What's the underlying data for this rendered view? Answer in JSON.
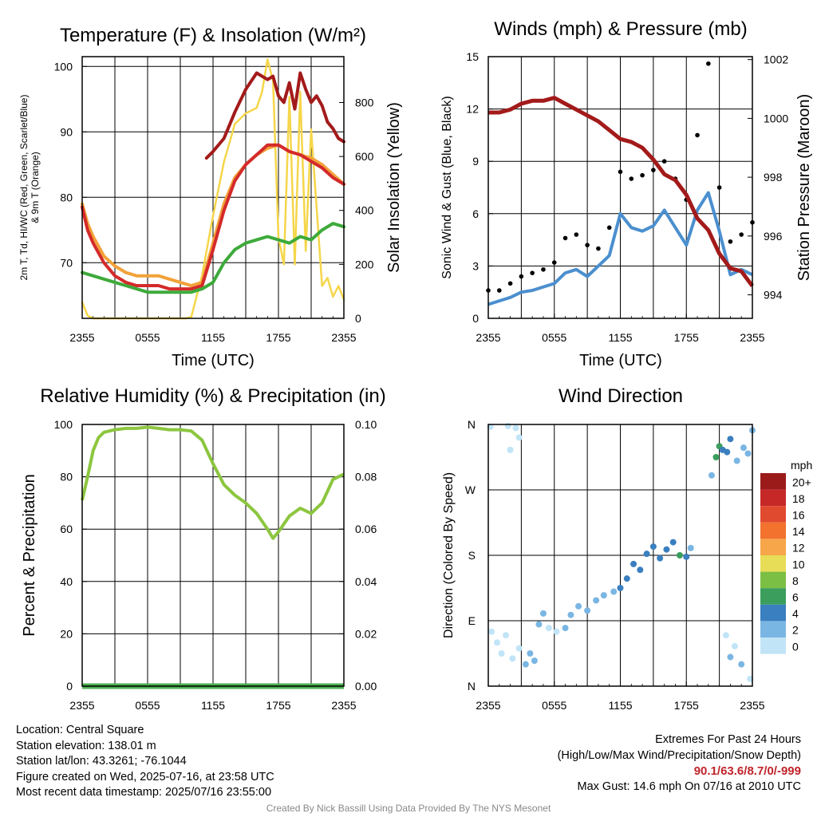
{
  "chart_data": [
    {
      "type": "line",
      "title": "Temperature (F) & Insolation (W/m²)",
      "xlabel": "Time (UTC)",
      "ylabel": [
        "2m T, Td, HI/WC (Red, Green, Scarlet/Blue)",
        "& 9m T (Orange)"
      ],
      "y2label": "Solar Insolation (Yellow)",
      "x_ticks": [
        "2355",
        "0555",
        "1155",
        "1755",
        "2355"
      ],
      "ylim": [
        61.5,
        101.5
      ],
      "y_ticks": [
        70,
        80,
        90,
        100
      ],
      "y2lim": [
        0,
        970
      ],
      "y2_ticks": [
        0,
        200,
        400,
        600,
        800
      ],
      "grid": true,
      "x_hours": [
        0,
        1,
        2,
        3,
        4,
        5,
        6,
        7,
        8,
        9,
        10,
        11,
        12,
        13,
        14,
        15,
        16,
        17,
        18,
        19,
        20,
        21,
        22,
        23,
        24
      ],
      "series": [
        {
          "color": "#a31a1a",
          "axis": "y2",
          "x": [
            11.4,
            12,
            13,
            14,
            15,
            16,
            17,
            17.5,
            18,
            18.5,
            19,
            19.5,
            20,
            20.5,
            21,
            21.5,
            22,
            22.5,
            23,
            23.5,
            24
          ],
          "values": [
            86,
            87,
            89,
            93,
            96.5,
            99,
            98,
            98.5,
            95.5,
            94.5,
            97.5,
            93.5,
            99,
            96.5,
            94.5,
            95.5,
            94,
            91.5,
            90.5,
            89,
            88.5
          ]
        },
        {
          "color": "#f2a23a",
          "x": [
            0,
            0.5,
            1,
            2,
            3,
            4,
            5,
            6,
            7,
            8,
            9,
            10,
            11,
            12,
            13,
            14,
            15,
            16,
            17,
            18,
            19,
            20,
            21,
            22,
            23,
            24
          ],
          "values": [
            79,
            76,
            74,
            71,
            69.5,
            68.5,
            68,
            68,
            68,
            67.5,
            67,
            66.5,
            67,
            73,
            79,
            83,
            85,
            86.5,
            87.5,
            88,
            87,
            86.5,
            86,
            85,
            83.5,
            82
          ]
        },
        {
          "color": "#d42a2a",
          "x": [
            0,
            0.5,
            1,
            2,
            3,
            4,
            5,
            6,
            7,
            8,
            9,
            10,
            11,
            12,
            13,
            14,
            15,
            16,
            17,
            18,
            19,
            20,
            21,
            22,
            23,
            24
          ],
          "values": [
            78.5,
            75,
            73,
            70,
            68,
            67,
            66.5,
            66.5,
            66.5,
            66,
            66,
            66,
            66.5,
            72,
            78,
            82.5,
            85,
            86.5,
            88,
            88,
            87,
            86.5,
            85.5,
            84.5,
            83,
            82
          ]
        },
        {
          "color": "#3daa3a",
          "x": [
            0,
            1,
            2,
            3,
            4,
            5,
            6,
            7,
            8,
            9,
            10,
            11,
            12,
            13,
            14,
            15,
            16,
            17,
            18,
            19,
            20,
            21,
            22,
            23,
            24
          ],
          "values": [
            68.5,
            68,
            67.5,
            67,
            66.5,
            66,
            65.5,
            65.5,
            65.5,
            65.5,
            65.5,
            66,
            67,
            70,
            72,
            73,
            73.5,
            74,
            73.5,
            73,
            74,
            73.5,
            75,
            76,
            75.5
          ]
        },
        {
          "color": "#f5d64a",
          "axis": "y2",
          "x": [
            0,
            0.5,
            1,
            2,
            4,
            6,
            8,
            9.5,
            10,
            11,
            12,
            13,
            14,
            15,
            16,
            16.5,
            17,
            17.5,
            18,
            18.5,
            19,
            19.5,
            20,
            20.5,
            21,
            22,
            22.5,
            23,
            23.5,
            24
          ],
          "values": [
            60,
            10,
            0,
            0,
            0,
            0,
            0,
            0,
            5,
            160,
            380,
            580,
            720,
            760,
            780,
            840,
            960,
            880,
            300,
            200,
            820,
            200,
            840,
            250,
            700,
            120,
            150,
            80,
            120,
            70
          ]
        }
      ]
    },
    {
      "type": "line",
      "title": "Winds (mph) & Pressure (mb)",
      "xlabel": "Time (UTC)",
      "ylabel": "Sonic Wind & Gust (Blue, Black)",
      "y2label": "Station Pressure (Maroon)",
      "x_ticks": [
        "2355",
        "0555",
        "1155",
        "1755",
        "2355"
      ],
      "ylim": [
        0,
        15
      ],
      "y_ticks": [
        0,
        3,
        6,
        9,
        12,
        15
      ],
      "y2lim": [
        993.2,
        1002.1
      ],
      "y2_ticks": [
        994,
        996,
        998,
        1000,
        1002
      ],
      "grid": true,
      "series": [
        {
          "name": "Sonic Wind",
          "color": "#4b8fcf",
          "x": [
            0,
            1,
            2,
            3,
            4,
            5,
            6,
            7,
            8,
            9,
            10,
            11,
            12,
            13,
            14,
            15,
            16,
            17,
            18,
            19,
            20,
            21,
            22,
            23,
            24
          ],
          "values": [
            0.8,
            1.0,
            1.2,
            1.5,
            1.6,
            1.8,
            2.0,
            2.6,
            2.8,
            2.4,
            3.0,
            3.6,
            6.0,
            5.2,
            5.0,
            5.3,
            6.2,
            5.2,
            4.2,
            6.2,
            7.2,
            5.0,
            2.5,
            2.8,
            2.5
          ]
        },
        {
          "name": "Gust",
          "color": "#000000",
          "x": [
            0,
            1,
            2,
            3,
            4,
            5,
            6,
            7,
            8,
            9,
            10,
            11,
            12,
            13,
            14,
            15,
            16,
            17,
            18,
            19,
            20,
            21,
            22,
            23,
            24
          ],
          "values": [
            1.6,
            1.6,
            2.0,
            2.4,
            2.6,
            2.8,
            3.2,
            4.6,
            4.8,
            4.2,
            4.0,
            5.2,
            8.4,
            8.0,
            8.2,
            8.5,
            9.0,
            8.0,
            6.8,
            10.5,
            14.6,
            7.5,
            4.4,
            4.8,
            5.5
          ]
        },
        {
          "name": "Station Pressure",
          "color": "#a31a1a",
          "axis": "y2",
          "x": [
            0,
            1,
            2,
            3,
            4,
            5,
            6,
            7,
            8,
            9,
            10,
            11,
            12,
            13,
            14,
            15,
            16,
            17,
            18,
            19,
            20,
            21,
            22,
            23,
            24
          ],
          "values": [
            1000.2,
            1000.2,
            1000.3,
            1000.5,
            1000.6,
            1000.6,
            1000.7,
            1000.5,
            1000.3,
            1000.1,
            999.9,
            999.6,
            999.3,
            999.2,
            999.0,
            998.6,
            998.1,
            997.9,
            997.4,
            996.6,
            996.2,
            995.4,
            994.9,
            994.8,
            994.3
          ]
        }
      ]
    },
    {
      "type": "line",
      "title": "Relative Humidity (%) & Precipitation (in)",
      "xlabel": "",
      "ylabel": "Percent & Precipitation",
      "x_ticks": [
        "2355",
        "0555",
        "1155",
        "1755",
        "2355"
      ],
      "ylim": [
        0,
        100
      ],
      "y_ticks": [
        0,
        20,
        40,
        60,
        80,
        100
      ],
      "y2lim": [
        0,
        0.1
      ],
      "y2_ticks": [
        "0.00",
        "0.02",
        "0.04",
        "0.06",
        "0.08",
        "0.10"
      ],
      "grid": true,
      "series": [
        {
          "color": "#8cc63f",
          "x": [
            0,
            0.5,
            1,
            1.5,
            2,
            3,
            4,
            5,
            6,
            7,
            8,
            9,
            10,
            11,
            12,
            13,
            14,
            15,
            16,
            17,
            17.5,
            18,
            19,
            20,
            21,
            22,
            23,
            24
          ],
          "values": [
            71,
            80,
            90,
            95,
            97,
            98,
            98.5,
            98.5,
            99,
            98.5,
            98,
            98,
            97.5,
            94,
            85,
            77,
            73,
            70,
            66,
            60,
            56.5,
            59,
            65,
            68,
            66,
            70,
            79,
            81
          ]
        },
        {
          "color": "#4caf50",
          "x": [
            0,
            24
          ],
          "values": [
            0,
            0
          ]
        }
      ]
    },
    {
      "type": "scatter",
      "title": "Wind Direction",
      "ylabel": "Direction (Colored By Speed)",
      "x_ticks": [
        "2355",
        "0555",
        "1155",
        "1755",
        "2355"
      ],
      "y_ticks": [
        "N",
        "E",
        "S",
        "W",
        "N"
      ],
      "ylim": [
        0,
        360
      ],
      "grid": true,
      "legend": {
        "title": "mph",
        "labels": [
          "20+",
          "18",
          "16",
          "14",
          "12",
          "10",
          "8",
          "6",
          "4",
          "2",
          "0"
        ],
        "colors": [
          "#9b1b1b",
          "#c62828",
          "#e04a2f",
          "#f2722e",
          "#f7a64a",
          "#e8dd57",
          "#7bbf44",
          "#3b9e5c",
          "#3a7fbf",
          "#7ab6e3",
          "#c1e4f7"
        ],
        "placement": "right"
      },
      "points": [
        {
          "x": 0.2,
          "y": 357,
          "speed": 1
        },
        {
          "x": 1.8,
          "y": 358,
          "speed": 0.5
        },
        {
          "x": 2.5,
          "y": 355,
          "speed": 1
        },
        {
          "x": 2.8,
          "y": 342,
          "speed": 1
        },
        {
          "x": 2.0,
          "y": 325,
          "speed": 1
        },
        {
          "x": 0.3,
          "y": 75,
          "speed": 1
        },
        {
          "x": 0.8,
          "y": 60,
          "speed": 0.5
        },
        {
          "x": 1.2,
          "y": 45,
          "speed": 1
        },
        {
          "x": 1.6,
          "y": 70,
          "speed": 1
        },
        {
          "x": 2.2,
          "y": 38,
          "speed": 1.5
        },
        {
          "x": 2.8,
          "y": 52,
          "speed": 1
        },
        {
          "x": 3.4,
          "y": 30,
          "speed": 2
        },
        {
          "x": 3.8,
          "y": 45,
          "speed": 2
        },
        {
          "x": 4.2,
          "y": 35,
          "speed": 2
        },
        {
          "x": 4.6,
          "y": 85,
          "speed": 2.5
        },
        {
          "x": 5.0,
          "y": 100,
          "speed": 2
        },
        {
          "x": 5.5,
          "y": 80,
          "speed": 1.5
        },
        {
          "x": 6.2,
          "y": 75,
          "speed": 1.8
        },
        {
          "x": 7.0,
          "y": 80,
          "speed": 2
        },
        {
          "x": 7.5,
          "y": 98,
          "speed": 2.5
        },
        {
          "x": 8.2,
          "y": 110,
          "speed": 2
        },
        {
          "x": 9.0,
          "y": 104,
          "speed": 2
        },
        {
          "x": 9.8,
          "y": 118,
          "speed": 3
        },
        {
          "x": 10.5,
          "y": 125,
          "speed": 3
        },
        {
          "x": 11.4,
          "y": 130,
          "speed": 3
        },
        {
          "x": 12.0,
          "y": 135,
          "speed": 5
        },
        {
          "x": 12.6,
          "y": 148,
          "speed": 4
        },
        {
          "x": 13.2,
          "y": 168,
          "speed": 5
        },
        {
          "x": 13.8,
          "y": 160,
          "speed": 5
        },
        {
          "x": 14.4,
          "y": 182,
          "speed": 4
        },
        {
          "x": 15.0,
          "y": 192,
          "speed": 4
        },
        {
          "x": 15.6,
          "y": 176,
          "speed": 5
        },
        {
          "x": 16.2,
          "y": 188,
          "speed": 5
        },
        {
          "x": 16.8,
          "y": 198,
          "speed": 4.5
        },
        {
          "x": 17.4,
          "y": 180,
          "speed": 6
        },
        {
          "x": 18.0,
          "y": 178,
          "speed": 4
        },
        {
          "x": 18.4,
          "y": 190,
          "speed": 2.5
        },
        {
          "x": 20.3,
          "y": 290,
          "speed": 3
        },
        {
          "x": 20.7,
          "y": 315,
          "speed": 6
        },
        {
          "x": 21.0,
          "y": 330,
          "speed": 7
        },
        {
          "x": 21.3,
          "y": 325,
          "speed": 5
        },
        {
          "x": 21.7,
          "y": 322,
          "speed": 4
        },
        {
          "x": 22.0,
          "y": 340,
          "speed": 4
        },
        {
          "x": 22.6,
          "y": 310,
          "speed": 3
        },
        {
          "x": 23.2,
          "y": 328,
          "speed": 3
        },
        {
          "x": 23.6,
          "y": 320,
          "speed": 2.5
        },
        {
          "x": 24.0,
          "y": 352,
          "speed": 2
        },
        {
          "x": 21.6,
          "y": 70,
          "speed": 1.5
        },
        {
          "x": 22.0,
          "y": 40,
          "speed": 2
        },
        {
          "x": 22.4,
          "y": 55,
          "speed": 1
        },
        {
          "x": 23.0,
          "y": 30,
          "speed": 2
        },
        {
          "x": 23.8,
          "y": 10,
          "speed": 1
        }
      ]
    }
  ],
  "station_info": {
    "location": "Location: Central Square",
    "elevation": "Station elevation: 138.01 m",
    "latlon": "Station lat/lon: 43.3261; -76.1044",
    "created": "Figure created on Wed, 2025-07-16, at 23:58 UTC",
    "recent": "Most recent data timestamp: 2025/07/16 23:55:00"
  },
  "extremes": {
    "title": "Extremes For Past 24 Hours",
    "subtitle": "(High/Low/Max Wind/Precipitation/Snow Depth)",
    "values": "90.1/63.6/8.7/0/-999",
    "max_gust": "Max Gust: 14.6 mph On 07/16 at 2010 UTC",
    "accent_color": "#c0242b"
  },
  "credit": "Created By Nick Bassill Using Data Provided By The NYS Mesonet"
}
